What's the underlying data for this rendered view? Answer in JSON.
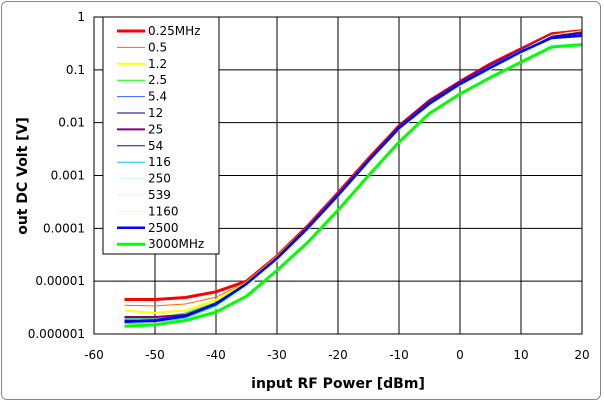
{
  "chart_data": {
    "type": "line",
    "title": "",
    "xlabel": "input RF Power [dBm]",
    "ylabel": "out DC Volt [V]",
    "xlim": [
      -60,
      20
    ],
    "ylim": [
      1e-06,
      1
    ],
    "yscale": "log",
    "grid": true,
    "legend_position": "top-left",
    "xticks": [
      "-60",
      "-50",
      "-40",
      "-30",
      "-20",
      "-10",
      "0",
      "10",
      "20"
    ],
    "yticks": [
      "1",
      "0.1",
      "0.01",
      "0.001",
      "0.0001",
      "0.00001",
      "0.000001"
    ],
    "x": [
      -55,
      -50,
      -45,
      -40,
      -35,
      -30,
      -25,
      -20,
      -15,
      -10,
      -5,
      0,
      5,
      10,
      15,
      20
    ],
    "series": [
      {
        "name": "0.25MHz",
        "color": "#ff0000",
        "width": 3,
        "values": [
          4.5e-06,
          4.5e-06,
          4.9e-06,
          6.3e-06,
          1e-05,
          3e-05,
          0.00011,
          0.00047,
          0.0021,
          0.0087,
          0.026,
          0.06,
          0.13,
          0.25,
          0.48,
          0.55
        ]
      },
      {
        "name": "0.5",
        "color": "#ff6600",
        "width": 1,
        "values": [
          3.5e-06,
          3.4e-06,
          3.7e-06,
          5e-06,
          9.5e-06,
          2.9e-05,
          0.000105,
          0.00045,
          0.002,
          0.0083,
          0.025,
          0.058,
          0.12,
          0.24,
          0.45,
          0.52
        ]
      },
      {
        "name": "1.2",
        "color": "#ffff00",
        "width": 2,
        "values": [
          2.8e-06,
          2.5e-06,
          2.8e-06,
          4.4e-06,
          9.3e-06,
          2.9e-05,
          0.000105,
          0.00045,
          0.002,
          0.0083,
          0.025,
          0.058,
          0.12,
          0.24,
          0.46,
          0.53
        ]
      },
      {
        "name": "2.5",
        "color": "#00ff00",
        "width": 1,
        "values": [
          2e-06,
          2e-06,
          2.5e-06,
          4e-06,
          9e-06,
          2.8e-05,
          0.0001,
          0.00043,
          0.00195,
          0.0081,
          0.024,
          0.056,
          0.115,
          0.23,
          0.44,
          0.5
        ]
      },
      {
        "name": "5.4",
        "color": "#3366ff",
        "width": 1,
        "values": [
          1.9e-06,
          1.9e-06,
          2.3e-06,
          3.9e-06,
          9e-06,
          2.8e-05,
          0.0001,
          0.00043,
          0.00195,
          0.0081,
          0.024,
          0.056,
          0.115,
          0.23,
          0.44,
          0.5
        ]
      },
      {
        "name": "12",
        "color": "#000066",
        "width": 1,
        "values": [
          1.8e-06,
          1.8e-06,
          2.2e-06,
          3.8e-06,
          9e-06,
          2.8e-05,
          0.0001,
          0.00043,
          0.00195,
          0.0081,
          0.024,
          0.056,
          0.115,
          0.23,
          0.44,
          0.5
        ]
      },
      {
        "name": "25",
        "color": "#800080",
        "width": 2,
        "values": [
          2.1e-06,
          2.1e-06,
          2.3e-06,
          3.8e-06,
          9e-06,
          2.8e-05,
          0.000105,
          0.00045,
          0.002,
          0.0085,
          0.026,
          0.06,
          0.125,
          0.24,
          0.46,
          0.52
        ]
      },
      {
        "name": "54",
        "color": "#0000ff",
        "width": 1,
        "values": [
          1.7e-06,
          1.7e-06,
          2.1e-06,
          3.6e-06,
          8.8e-06,
          2.7e-05,
          0.0001,
          0.00042,
          0.0019,
          0.0079,
          0.023,
          0.054,
          0.11,
          0.22,
          0.42,
          0.48
        ]
      },
      {
        "name": "116",
        "color": "#00ccff",
        "width": 1,
        "values": [
          1.6e-06,
          1.6e-06,
          2e-06,
          3.4e-06,
          8.4e-06,
          2.6e-05,
          9.6e-05,
          0.00041,
          0.00185,
          0.0077,
          0.022,
          0.052,
          0.105,
          0.21,
          0.4,
          0.46
        ]
      },
      {
        "name": "250",
        "color": "#ccffff",
        "width": 1,
        "values": [
          1.5e-06,
          1.5e-06,
          1.9e-06,
          3.2e-06,
          8e-06,
          2.5e-05,
          9.2e-05,
          0.0004,
          0.0018,
          0.0075,
          0.021,
          0.05,
          0.1,
          0.2,
          0.3,
          0.31
        ]
      },
      {
        "name": "539",
        "color": "#ccffcc",
        "width": 1,
        "values": [
          1.4e-06,
          1.5e-06,
          1.8e-06,
          3e-06,
          7.6e-06,
          2.4e-05,
          9e-05,
          0.00039,
          0.00175,
          0.0073,
          0.021,
          0.049,
          0.1,
          0.2,
          0.38,
          0.44
        ]
      },
      {
        "name": "1160",
        "color": "#ffff99",
        "width": 1,
        "values": [
          1.5e-06,
          1.6e-06,
          1.9e-06,
          3.2e-06,
          8e-06,
          2.5e-05,
          9.4e-05,
          0.00041,
          0.00185,
          0.0077,
          0.023,
          0.055,
          0.115,
          0.23,
          0.45,
          0.55
        ]
      },
      {
        "name": "2500",
        "color": "#0000ff",
        "width": 2.5,
        "values": [
          1.7e-06,
          1.8e-06,
          2.2e-06,
          3.7e-06,
          8.9e-06,
          2.7e-05,
          0.0001,
          0.00042,
          0.0019,
          0.0079,
          0.023,
          0.054,
          0.11,
          0.22,
          0.4,
          0.44
        ]
      },
      {
        "name": "3000MHz",
        "color": "#00ff00",
        "width": 3,
        "values": [
          1.4e-06,
          1.5e-06,
          1.8e-06,
          2.6e-06,
          5.2e-06,
          1.6e-05,
          5.4e-05,
          0.00022,
          0.001,
          0.0043,
          0.015,
          0.035,
          0.072,
          0.14,
          0.27,
          0.3
        ]
      }
    ]
  }
}
